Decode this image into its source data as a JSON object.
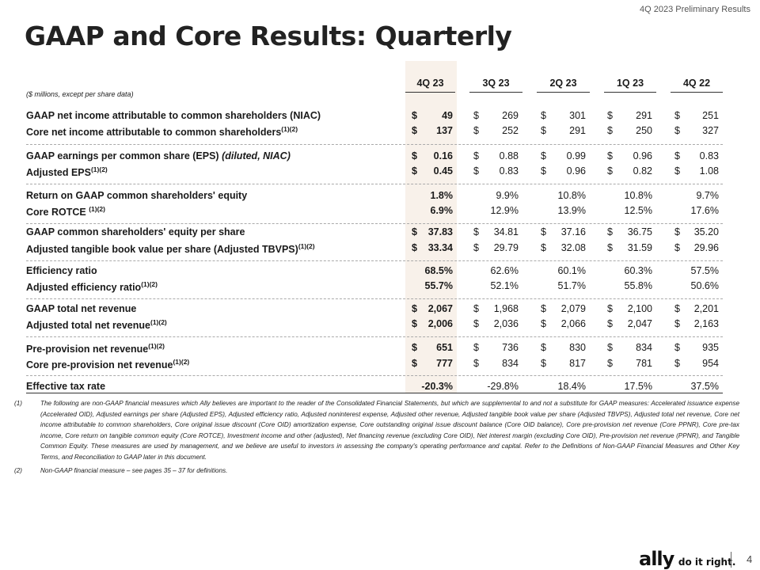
{
  "header_tag": "4Q 2023 Preliminary Results",
  "title": "GAAP and Core Results: Quarterly",
  "units": "($ millions, except per share data)",
  "columns": [
    "4Q 23",
    "3Q 23",
    "2Q 23",
    "1Q 23",
    "4Q 22"
  ],
  "highlight_color": "#f8f1ea",
  "rows": [
    {
      "label": "GAAP net income attributable to common shareholders (NIAC)",
      "sup": "",
      "ital": "",
      "cells": [
        [
          "$",
          "49"
        ],
        [
          "$",
          "269"
        ],
        [
          "$",
          "301"
        ],
        [
          "$",
          "291"
        ],
        [
          "$",
          "251"
        ]
      ]
    },
    {
      "label": "Core net income attributable to common shareholders",
      "sup": "(1)(2)",
      "ital": "",
      "cells": [
        [
          "$",
          "137"
        ],
        [
          "$",
          "252"
        ],
        [
          "$",
          "291"
        ],
        [
          "$",
          "250"
        ],
        [
          "$",
          "327"
        ]
      ]
    },
    {
      "label": "GAAP earnings per common share (EPS) ",
      "sup": "",
      "ital": "(diluted, NIAC)",
      "cells": [
        [
          "$",
          "0.16"
        ],
        [
          "$",
          "0.88"
        ],
        [
          "$",
          "0.99"
        ],
        [
          "$",
          "0.96"
        ],
        [
          "$",
          "0.83"
        ]
      ]
    },
    {
      "label": "Adjusted EPS",
      "sup": "(1)(2)",
      "ital": "",
      "cells": [
        [
          "$",
          "0.45"
        ],
        [
          "$",
          "0.83"
        ],
        [
          "$",
          "0.96"
        ],
        [
          "$",
          "0.82"
        ],
        [
          "$",
          "1.08"
        ]
      ]
    },
    {
      "label": "Return on GAAP common shareholders' equity",
      "sup": "",
      "ital": "",
      "cells": [
        [
          "",
          "1.8%"
        ],
        [
          "",
          "9.9%"
        ],
        [
          "",
          "10.8%"
        ],
        [
          "",
          "10.8%"
        ],
        [
          "",
          "9.7%"
        ]
      ]
    },
    {
      "label": "Core ROTCE ",
      "sup": "(1)(2)",
      "ital": "",
      "cells": [
        [
          "",
          "6.9%"
        ],
        [
          "",
          "12.9%"
        ],
        [
          "",
          "13.9%"
        ],
        [
          "",
          "12.5%"
        ],
        [
          "",
          "17.6%"
        ]
      ]
    },
    {
      "label": "GAAP common shareholders' equity per share",
      "sup": "",
      "ital": "",
      "cells": [
        [
          "$",
          "37.83"
        ],
        [
          "$",
          "34.81"
        ],
        [
          "$",
          "37.16"
        ],
        [
          "$",
          "36.75"
        ],
        [
          "$",
          "35.20"
        ]
      ]
    },
    {
      "label": "Adjusted tangible book value per share (Adjusted TBVPS)",
      "sup": "(1)(2)",
      "ital": "",
      "cells": [
        [
          "$",
          "33.34"
        ],
        [
          "$",
          "29.79"
        ],
        [
          "$",
          "32.08"
        ],
        [
          "$",
          "31.59"
        ],
        [
          "$",
          "29.96"
        ]
      ]
    },
    {
      "label": "Efficiency ratio",
      "sup": "",
      "ital": "",
      "cells": [
        [
          "",
          "68.5%"
        ],
        [
          "",
          "62.6%"
        ],
        [
          "",
          "60.1%"
        ],
        [
          "",
          "60.3%"
        ],
        [
          "",
          "57.5%"
        ]
      ]
    },
    {
      "label": "Adjusted efficiency ratio",
      "sup": "(1)(2)",
      "ital": "",
      "cells": [
        [
          "",
          "55.7%"
        ],
        [
          "",
          "52.1%"
        ],
        [
          "",
          "51.7%"
        ],
        [
          "",
          "55.8%"
        ],
        [
          "",
          "50.6%"
        ]
      ]
    },
    {
      "label": "GAAP total net revenue",
      "sup": "",
      "ital": "",
      "cells": [
        [
          "$",
          "2,067"
        ],
        [
          "$",
          "1,968"
        ],
        [
          "$",
          "2,079"
        ],
        [
          "$",
          "2,100"
        ],
        [
          "$",
          "2,201"
        ]
      ]
    },
    {
      "label": "Adjusted total net revenue",
      "sup": "(1)(2)",
      "ital": "",
      "cells": [
        [
          "$",
          "2,006"
        ],
        [
          "$",
          "2,036"
        ],
        [
          "$",
          "2,066"
        ],
        [
          "$",
          "2,047"
        ],
        [
          "$",
          "2,163"
        ]
      ]
    },
    {
      "label": "Pre-provision net revenue",
      "sup": "(1)(2)",
      "ital": "",
      "cells": [
        [
          "$",
          "651"
        ],
        [
          "$",
          "736"
        ],
        [
          "$",
          "830"
        ],
        [
          "$",
          "834"
        ],
        [
          "$",
          "935"
        ]
      ]
    },
    {
      "label": "Core pre-provision net revenue",
      "sup": "(1)(2)",
      "ital": "",
      "cells": [
        [
          "$",
          "777"
        ],
        [
          "$",
          "834"
        ],
        [
          "$",
          "817"
        ],
        [
          "$",
          "781"
        ],
        [
          "$",
          "954"
        ]
      ]
    },
    {
      "label": "Effective tax rate",
      "sup": "",
      "ital": "",
      "cells": [
        [
          "",
          "-20.3%"
        ],
        [
          "",
          "-29.8%"
        ],
        [
          "",
          "18.4%"
        ],
        [
          "",
          "17.5%"
        ],
        [
          "",
          "37.5%"
        ]
      ]
    }
  ],
  "notes": [
    {
      "n": "(1)",
      "text": "The following are non-GAAP financial measures which Ally believes are important to the reader of the Consolidated Financial Statements, but which are supplemental to and not a substitute for GAAP measures: Accelerated issuance expense (Accelerated OID), Adjusted earnings per share (Adjusted EPS), Adjusted efficiency ratio, Adjusted noninterest expense, Adjusted other revenue, Adjusted tangible book value per share (Adjusted TBVPS), Adjusted total net revenue, Core net income attributable to common shareholders, Core original issue discount (Core OID) amortization expense, Core outstanding original issue discount balance (Core OID balance), Core pre-provision net revenue (Core PPNR), Core pre-tax income, Core return on tangible common equity (Core ROTCE), Investment income and other (adjusted), Net financing revenue (excluding Core OID), Net interest margin (excluding Core OID), Pre-provision net revenue (PPNR), and Tangible Common Equity. These measures are used by management, and we believe are useful to investors in assessing the company's operating performance and capital. Refer to the Definitions of Non-GAAP Financial Measures and Other Key Terms, and Reconciliation to GAAP later in this document."
    },
    {
      "n": "(2)",
      "text": "Non-GAAP financial measure – see pages 35 – 37 for definitions."
    }
  ],
  "logo": {
    "brand": "ally",
    "slogan": "do it right."
  },
  "page_number": "4"
}
